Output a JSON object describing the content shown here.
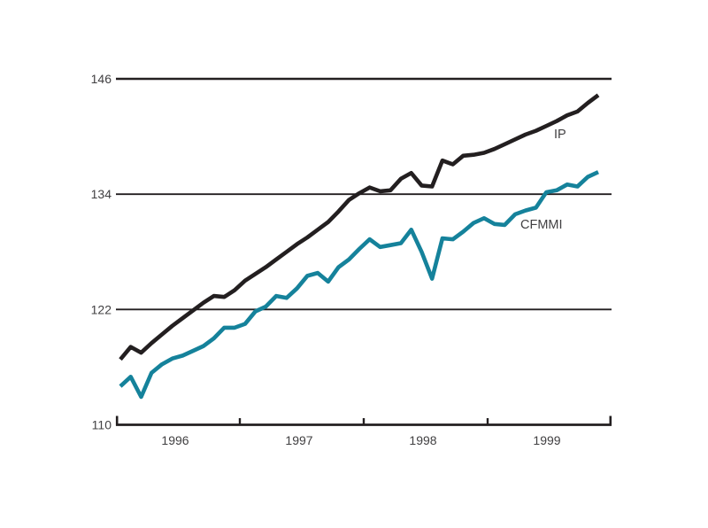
{
  "chart_data": {
    "type": "line",
    "title": "",
    "xlabel": "",
    "ylabel": "",
    "ylim": [
      110,
      146
    ],
    "yticks": [
      110,
      122,
      134,
      146
    ],
    "xtick_years": [
      "1996",
      "1997",
      "1998",
      "1999"
    ],
    "grid": "horizontal",
    "legend_position": "inline-annotations",
    "x": [
      "1996-01",
      "1996-02",
      "1996-03",
      "1996-04",
      "1996-05",
      "1996-06",
      "1996-07",
      "1996-08",
      "1996-09",
      "1996-10",
      "1996-11",
      "1996-12",
      "1997-01",
      "1997-02",
      "1997-03",
      "1997-04",
      "1997-05",
      "1997-06",
      "1997-07",
      "1997-08",
      "1997-09",
      "1997-10",
      "1997-11",
      "1997-12",
      "1998-01",
      "1998-02",
      "1998-03",
      "1998-04",
      "1998-05",
      "1998-06",
      "1998-07",
      "1998-08",
      "1998-09",
      "1998-10",
      "1998-11",
      "1998-12",
      "1999-01",
      "1999-02",
      "1999-03",
      "1999-04",
      "1999-05",
      "1999-06",
      "1999-07",
      "1999-08",
      "1999-09",
      "1999-10",
      "1999-11"
    ],
    "series": [
      {
        "name": "IP",
        "color": "#231f20",
        "values": [
          116.8,
          118.1,
          117.5,
          118.5,
          119.4,
          120.3,
          121.1,
          121.9,
          122.7,
          123.4,
          123.3,
          124.0,
          125.0,
          125.7,
          126.4,
          127.2,
          128.0,
          128.8,
          129.5,
          130.3,
          131.1,
          132.2,
          133.4,
          134.1,
          134.7,
          134.3,
          134.4,
          135.6,
          136.2,
          134.9,
          134.8,
          137.5,
          137.1,
          138.0,
          138.1,
          138.3,
          138.7,
          139.2,
          139.7,
          140.2,
          140.6,
          141.1,
          141.6,
          142.2,
          142.6,
          143.5,
          144.3
        ]
      },
      {
        "name": "CFMMI",
        "color": "#15829b",
        "values": [
          114.0,
          115.0,
          112.9,
          115.4,
          116.3,
          116.9,
          117.2,
          117.7,
          118.2,
          119.0,
          120.1,
          120.1,
          120.5,
          121.8,
          122.3,
          123.4,
          123.2,
          124.2,
          125.5,
          125.8,
          124.9,
          126.4,
          127.2,
          128.3,
          129.3,
          128.5,
          128.7,
          128.9,
          130.3,
          128.0,
          125.2,
          129.4,
          129.3,
          130.1,
          131.0,
          131.5,
          130.9,
          130.8,
          131.9,
          132.3,
          132.6,
          134.2,
          134.4,
          135.0,
          134.8,
          135.8,
          136.3
        ]
      }
    ],
    "annotations": [
      {
        "text": "IP",
        "series": "IP"
      },
      {
        "text": "CFMMI",
        "series": "CFMMI"
      }
    ]
  },
  "colors": {
    "ip_line": "#231f20",
    "cfmmi_line": "#15829b",
    "axis": "#231f20",
    "label_text": "#414042"
  }
}
